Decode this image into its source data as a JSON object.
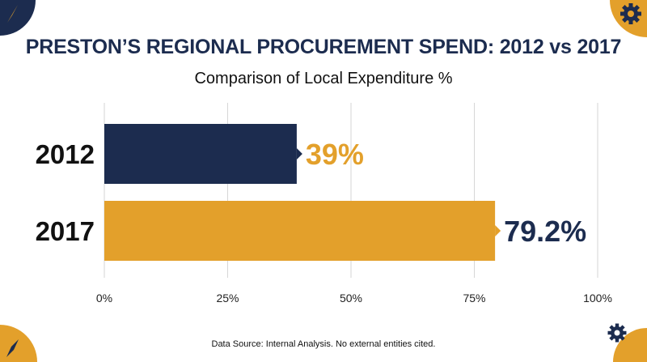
{
  "title": "PRESTON’S REGIONAL PROCUREMENT SPEND: 2012 vs 2017",
  "subtitle": "Comparison of Local Expenditure %",
  "source": "Data Source: Internal Analysis. No external entities cited.",
  "colors": {
    "navy": "#1c2c4f",
    "gold": "#e3a02b",
    "grid": "#d6d6d6"
  },
  "icons": {
    "top_left": "compass-icon",
    "top_right": "gear-icon",
    "bottom_left": "compass-icon",
    "bottom_right": "gear-icon"
  },
  "chart_data": {
    "type": "bar",
    "orientation": "horizontal",
    "title": "PRESTON’S REGIONAL PROCUREMENT SPEND: 2012 vs 2017",
    "subtitle": "Comparison of Local Expenditure %",
    "categories": [
      "2012",
      "2017"
    ],
    "values": [
      39,
      79.2
    ],
    "value_labels": [
      "39%",
      "79.2%"
    ],
    "bar_colors": [
      "#1c2c4f",
      "#e3a02b"
    ],
    "label_colors": [
      "#e3a02b",
      "#1c2c4f"
    ],
    "xlim": [
      0,
      100
    ],
    "x_ticks": [
      0,
      25,
      50,
      75,
      100
    ],
    "x_tick_labels": [
      "0%",
      "25%",
      "50%",
      "75%",
      "100%"
    ],
    "grid": true
  }
}
